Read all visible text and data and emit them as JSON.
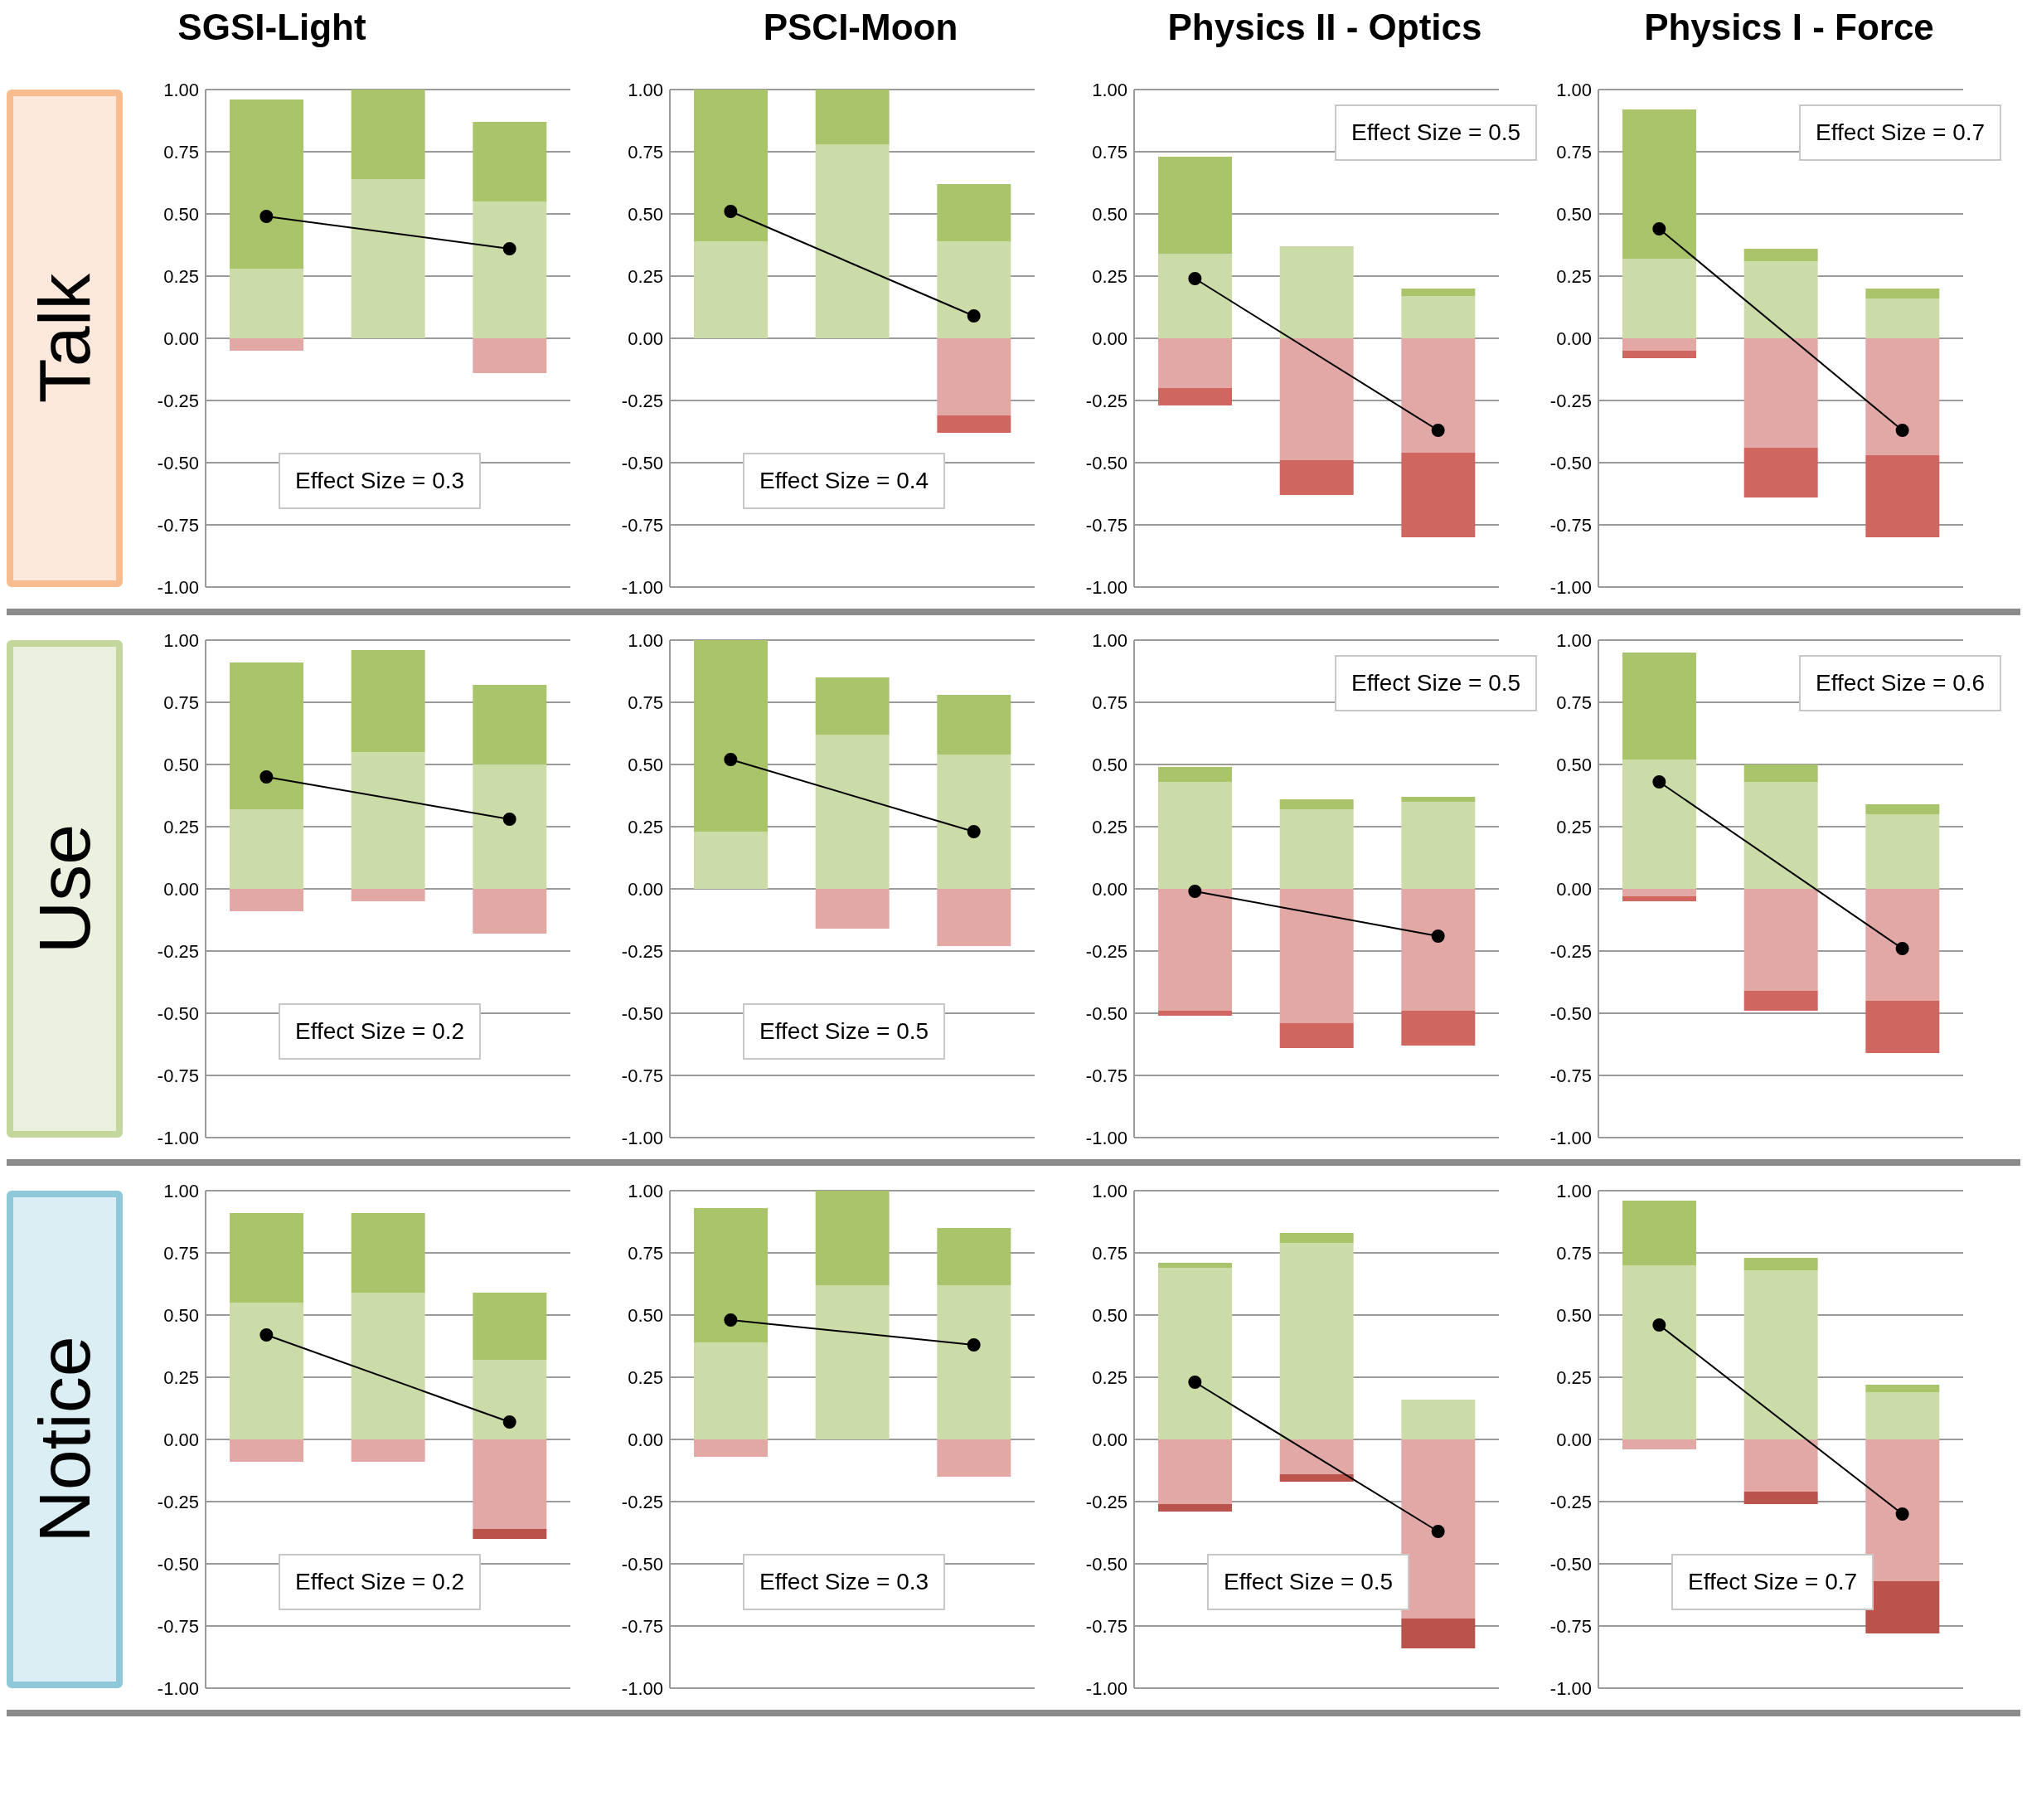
{
  "chart_data": [
    {
      "type": "bar",
      "stacked": true,
      "title": "SGSI-Light",
      "ylabel": "Talk",
      "categories": [
        null,
        null,
        null
      ],
      "ylim": [
        -1,
        1
      ],
      "yticks": [
        {
          "value": 1,
          "label": "1.00"
        },
        {
          "value": 0.75,
          "label": "0.75"
        },
        {
          "value": 0.5,
          "label": "0.50"
        },
        {
          "value": 0.25,
          "label": "0.25"
        },
        {
          "value": 0,
          "label": "0.00"
        },
        {
          "value": -0.25,
          "label": "-0.25"
        },
        {
          "value": -0.5,
          "label": "-0.50"
        },
        {
          "value": -0.75,
          "label": "-0.75"
        },
        {
          "value": -1,
          "label": "-1.00"
        }
      ],
      "grid": "y",
      "marker": "circle",
      "annotations": [
        "Effect Size = 0.3"
      ],
      "series": [
        {
          "color": "#cbdca8",
          "values": [
            0.28,
            0.64,
            0.55
          ]
        },
        {
          "color": "#a9c46a",
          "values": [
            0.68,
            0.36,
            0.32
          ]
        },
        {
          "color": "#e2a8a6",
          "values": [
            -0.05,
            0,
            -0.14
          ]
        },
        {
          "color": "#cf6660",
          "values": [
            0,
            0,
            0
          ]
        },
        {
          "type": "line",
          "color": "#000000",
          "values": [
            0.49,
            null,
            0.36
          ]
        }
      ]
    },
    {
      "type": "bar",
      "stacked": true,
      "title": "PSCI-Moon",
      "categories": [
        null,
        null,
        null
      ],
      "ylim": [
        -1,
        1
      ],
      "yticks": [
        {
          "value": 1,
          "label": "1.00"
        },
        {
          "value": 0.75,
          "label": "0.75"
        },
        {
          "value": 0.5,
          "label": "0.50"
        },
        {
          "value": 0.25,
          "label": "0.25"
        },
        {
          "value": 0,
          "label": "0.00"
        },
        {
          "value": -0.25,
          "label": "-0.25"
        },
        {
          "value": -0.5,
          "label": "-0.50"
        },
        {
          "value": -0.75,
          "label": "-0.75"
        },
        {
          "value": -1,
          "label": "-1.00"
        }
      ],
      "grid": "y",
      "marker": "circle",
      "annotations": [
        "Effect Size = 0.4"
      ],
      "series": [
        {
          "color": "#cbdca8",
          "values": [
            0.39,
            0.78,
            0.39
          ]
        },
        {
          "color": "#a9c46a",
          "values": [
            0.61,
            0.22,
            0.23
          ]
        },
        {
          "color": "#e2a8a6",
          "values": [
            0,
            0,
            -0.31
          ]
        },
        {
          "color": "#cf6660",
          "values": [
            0,
            0,
            -0.07
          ]
        },
        {
          "type": "line",
          "color": "#000000",
          "values": [
            0.51,
            null,
            0.09
          ]
        }
      ]
    },
    {
      "type": "bar",
      "stacked": true,
      "title": "Physics II - Optics",
      "categories": [
        null,
        null,
        null
      ],
      "ylim": [
        -1,
        1
      ],
      "yticks": [
        {
          "value": 1,
          "label": "1.00"
        },
        {
          "value": 0.75,
          "label": "0.75"
        },
        {
          "value": 0.5,
          "label": "0.50"
        },
        {
          "value": 0.25,
          "label": "0.25"
        },
        {
          "value": 0,
          "label": "0.00"
        },
        {
          "value": -0.25,
          "label": "-0.25"
        },
        {
          "value": -0.5,
          "label": "-0.50"
        },
        {
          "value": -0.75,
          "label": "-0.75"
        },
        {
          "value": -1,
          "label": "-1.00"
        }
      ],
      "grid": "y",
      "marker": "circle",
      "annotations": [
        "Effect Size = 0.5"
      ],
      "series": [
        {
          "color": "#cbdca8",
          "values": [
            0.34,
            0.37,
            0.17
          ]
        },
        {
          "color": "#a9c46a",
          "values": [
            0.39,
            0,
            0.03
          ]
        },
        {
          "color": "#e2a8a6",
          "values": [
            -0.2,
            -0.49,
            -0.46
          ]
        },
        {
          "color": "#cf6660",
          "values": [
            -0.07,
            -0.14,
            -0.34
          ]
        },
        {
          "type": "line",
          "color": "#000000",
          "values": [
            0.24,
            null,
            -0.37
          ]
        }
      ]
    },
    {
      "type": "bar",
      "stacked": true,
      "title": "Physics I - Force",
      "categories": [
        null,
        null,
        null
      ],
      "ylim": [
        -1,
        1
      ],
      "yticks": [
        {
          "value": 1,
          "label": "1.00"
        },
        {
          "value": 0.75,
          "label": "0.75"
        },
        {
          "value": 0.5,
          "label": "0.50"
        },
        {
          "value": 0.25,
          "label": "0.25"
        },
        {
          "value": 0,
          "label": "0.00"
        },
        {
          "value": -0.25,
          "label": "-0.25"
        },
        {
          "value": -0.5,
          "label": "-0.50"
        },
        {
          "value": -0.75,
          "label": "-0.75"
        },
        {
          "value": -1,
          "label": "-1.00"
        }
      ],
      "grid": "y",
      "marker": "circle",
      "annotations": [
        "Effect Size = 0.7"
      ],
      "series": [
        {
          "color": "#cbdca8",
          "values": [
            0.32,
            0.31,
            0.16
          ]
        },
        {
          "color": "#a9c46a",
          "values": [
            0.6,
            0.05,
            0.04
          ]
        },
        {
          "color": "#e2a8a6",
          "values": [
            -0.05,
            -0.44,
            -0.47
          ]
        },
        {
          "color": "#cf6660",
          "values": [
            -0.03,
            -0.2,
            -0.33
          ]
        },
        {
          "type": "line",
          "color": "#000000",
          "values": [
            0.44,
            null,
            -0.37
          ]
        }
      ]
    },
    {
      "type": "bar",
      "stacked": true,
      "ylabel": "Use",
      "categories": [
        null,
        null,
        null
      ],
      "ylim": [
        -1,
        1
      ],
      "yticks": [
        {
          "value": 1,
          "label": "1.00"
        },
        {
          "value": 0.75,
          "label": "0.75"
        },
        {
          "value": 0.5,
          "label": "0.50"
        },
        {
          "value": 0.25,
          "label": "0.25"
        },
        {
          "value": 0,
          "label": "0.00"
        },
        {
          "value": -0.25,
          "label": "-0.25"
        },
        {
          "value": -0.5,
          "label": "-0.50"
        },
        {
          "value": -0.75,
          "label": "-0.75"
        },
        {
          "value": -1,
          "label": "-1.00"
        }
      ],
      "grid": "y",
      "marker": "circle",
      "annotations": [
        "Effect Size = 0.2"
      ],
      "series": [
        {
          "color": "#cbdca8",
          "values": [
            0.32,
            0.55,
            0.5
          ]
        },
        {
          "color": "#a9c46a",
          "values": [
            0.59,
            0.41,
            0.32
          ]
        },
        {
          "color": "#e2a8a6",
          "values": [
            -0.09,
            -0.05,
            -0.18
          ]
        },
        {
          "color": "#cf6660",
          "values": [
            0,
            0,
            0
          ]
        },
        {
          "type": "line",
          "color": "#000000",
          "values": [
            0.45,
            null,
            0.28
          ]
        }
      ]
    },
    {
      "type": "bar",
      "stacked": true,
      "categories": [
        null,
        null,
        null
      ],
      "ylim": [
        -1,
        1
      ],
      "yticks": [
        {
          "value": 1,
          "label": "1.00"
        },
        {
          "value": 0.75,
          "label": "0.75"
        },
        {
          "value": 0.5,
          "label": "0.50"
        },
        {
          "value": 0.25,
          "label": "0.25"
        },
        {
          "value": 0,
          "label": "0.00"
        },
        {
          "value": -0.25,
          "label": "-0.25"
        },
        {
          "value": -0.5,
          "label": "-0.50"
        },
        {
          "value": -0.75,
          "label": "-0.75"
        },
        {
          "value": -1,
          "label": "-1.00"
        }
      ],
      "grid": "y",
      "marker": "circle",
      "annotations": [
        "Effect Size = 0.5"
      ],
      "series": [
        {
          "color": "#cbdca8",
          "values": [
            0.23,
            0.62,
            0.54
          ]
        },
        {
          "color": "#a9c46a",
          "values": [
            0.77,
            0.23,
            0.24
          ]
        },
        {
          "color": "#e2a8a6",
          "values": [
            0,
            -0.16,
            -0.23
          ]
        },
        {
          "color": "#cf6660",
          "values": [
            0,
            0,
            0
          ]
        },
        {
          "type": "line",
          "color": "#000000",
          "values": [
            0.52,
            null,
            0.23
          ]
        }
      ]
    },
    {
      "type": "bar",
      "stacked": true,
      "categories": [
        null,
        null,
        null
      ],
      "ylim": [
        -1,
        1
      ],
      "yticks": [
        {
          "value": 1,
          "label": "1.00"
        },
        {
          "value": 0.75,
          "label": "0.75"
        },
        {
          "value": 0.5,
          "label": "0.50"
        },
        {
          "value": 0.25,
          "label": "0.25"
        },
        {
          "value": 0,
          "label": "0.00"
        },
        {
          "value": -0.25,
          "label": "-0.25"
        },
        {
          "value": -0.5,
          "label": "-0.50"
        },
        {
          "value": -0.75,
          "label": "-0.75"
        },
        {
          "value": -1,
          "label": "-1.00"
        }
      ],
      "grid": "y",
      "marker": "circle",
      "annotations": [
        "Effect Size = 0.5"
      ],
      "series": [
        {
          "color": "#cbdca8",
          "values": [
            0.43,
            0.32,
            0.35
          ]
        },
        {
          "color": "#a9c46a",
          "values": [
            0.06,
            0.04,
            0.02
          ]
        },
        {
          "color": "#e2a8a6",
          "values": [
            -0.49,
            -0.54,
            -0.49
          ]
        },
        {
          "color": "#cf6660",
          "values": [
            -0.02,
            -0.1,
            -0.14
          ]
        },
        {
          "type": "line",
          "color": "#000000",
          "values": [
            -0.01,
            null,
            -0.19
          ]
        }
      ]
    },
    {
      "type": "bar",
      "stacked": true,
      "categories": [
        null,
        null,
        null
      ],
      "ylim": [
        -1,
        1
      ],
      "yticks": [
        {
          "value": 1,
          "label": "1.00"
        },
        {
          "value": 0.75,
          "label": "0.75"
        },
        {
          "value": 0.5,
          "label": "0.50"
        },
        {
          "value": 0.25,
          "label": "0.25"
        },
        {
          "value": 0,
          "label": "0.00"
        },
        {
          "value": -0.25,
          "label": "-0.25"
        },
        {
          "value": -0.5,
          "label": "-0.50"
        },
        {
          "value": -0.75,
          "label": "-0.75"
        },
        {
          "value": -1,
          "label": "-1.00"
        }
      ],
      "grid": "y",
      "marker": "circle",
      "annotations": [
        "Effect Size = 0.6"
      ],
      "series": [
        {
          "color": "#cbdca8",
          "values": [
            0.52,
            0.43,
            0.3
          ]
        },
        {
          "color": "#a9c46a",
          "values": [
            0.43,
            0.07,
            0.04
          ]
        },
        {
          "color": "#e2a8a6",
          "values": [
            -0.03,
            -0.41,
            -0.45
          ]
        },
        {
          "color": "#cf6660",
          "values": [
            -0.02,
            -0.08,
            -0.21
          ]
        },
        {
          "type": "line",
          "color": "#000000",
          "values": [
            0.43,
            null,
            -0.24
          ]
        }
      ]
    },
    {
      "type": "bar",
      "stacked": true,
      "ylabel": "Notice",
      "categories": [
        null,
        null,
        null
      ],
      "ylim": [
        -1,
        1
      ],
      "yticks": [
        {
          "value": 1,
          "label": "1.00"
        },
        {
          "value": 0.75,
          "label": "0.75"
        },
        {
          "value": 0.5,
          "label": "0.50"
        },
        {
          "value": 0.25,
          "label": "0.25"
        },
        {
          "value": 0,
          "label": "0.00"
        },
        {
          "value": -0.25,
          "label": "-0.25"
        },
        {
          "value": -0.5,
          "label": "-0.50"
        },
        {
          "value": -0.75,
          "label": "-0.75"
        },
        {
          "value": -1,
          "label": "-1.00"
        }
      ],
      "grid": "y",
      "marker": "circle",
      "annotations": [
        "Effect Size = 0.2"
      ],
      "series": [
        {
          "color": "#cbdca8",
          "values": [
            0.55,
            0.59,
            0.32
          ]
        },
        {
          "color": "#a9c46a",
          "values": [
            0.36,
            0.32,
            0.27
          ]
        },
        {
          "color": "#e2a8a6",
          "values": [
            -0.09,
            -0.09,
            -0.36
          ]
        },
        {
          "color": "#b9534c",
          "values": [
            0,
            0,
            -0.04
          ]
        },
        {
          "type": "line",
          "color": "#000000",
          "values": [
            0.42,
            null,
            0.07
          ]
        }
      ]
    },
    {
      "type": "bar",
      "stacked": true,
      "categories": [
        null,
        null,
        null
      ],
      "ylim": [
        -1,
        1
      ],
      "yticks": [
        {
          "value": 1,
          "label": "1.00"
        },
        {
          "value": 0.75,
          "label": "0.75"
        },
        {
          "value": 0.5,
          "label": "0.50"
        },
        {
          "value": 0.25,
          "label": "0.25"
        },
        {
          "value": 0,
          "label": "0.00"
        },
        {
          "value": -0.25,
          "label": "-0.25"
        },
        {
          "value": -0.5,
          "label": "-0.50"
        },
        {
          "value": -0.75,
          "label": "-0.75"
        },
        {
          "value": -1,
          "label": "-1.00"
        }
      ],
      "grid": "y",
      "marker": "circle",
      "annotations": [
        "Effect Size = 0.3"
      ],
      "series": [
        {
          "color": "#cbdca8",
          "values": [
            0.39,
            0.62,
            0.62
          ]
        },
        {
          "color": "#a9c46a",
          "values": [
            0.54,
            0.38,
            0.23
          ]
        },
        {
          "color": "#e2a8a6",
          "values": [
            -0.07,
            0,
            -0.15
          ]
        },
        {
          "color": "#b9534c",
          "values": [
            0,
            0,
            0
          ]
        },
        {
          "type": "line",
          "color": "#000000",
          "values": [
            0.48,
            null,
            0.38
          ]
        }
      ]
    },
    {
      "type": "bar",
      "stacked": true,
      "categories": [
        null,
        null,
        null
      ],
      "ylim": [
        -1,
        1
      ],
      "yticks": [
        {
          "value": 1,
          "label": "1.00"
        },
        {
          "value": 0.75,
          "label": "0.75"
        },
        {
          "value": 0.5,
          "label": "0.50"
        },
        {
          "value": 0.25,
          "label": "0.25"
        },
        {
          "value": 0,
          "label": "0.00"
        },
        {
          "value": -0.25,
          "label": "-0.25"
        },
        {
          "value": -0.5,
          "label": "-0.50"
        },
        {
          "value": -0.75,
          "label": "-0.75"
        },
        {
          "value": -1,
          "label": "-1.00"
        }
      ],
      "grid": "y",
      "marker": "circle",
      "annotations": [
        "Effect Size = 0.5"
      ],
      "series": [
        {
          "color": "#cbdca8",
          "values": [
            0.69,
            0.79,
            0.16
          ]
        },
        {
          "color": "#a9c46a",
          "values": [
            0.02,
            0.04,
            0
          ]
        },
        {
          "color": "#e2a8a6",
          "values": [
            -0.26,
            -0.14,
            -0.72
          ]
        },
        {
          "color": "#b9534c",
          "values": [
            -0.03,
            -0.03,
            -0.12
          ]
        },
        {
          "type": "line",
          "color": "#000000",
          "values": [
            0.23,
            null,
            -0.37
          ]
        }
      ]
    },
    {
      "type": "bar",
      "stacked": true,
      "categories": [
        null,
        null,
        null
      ],
      "ylim": [
        -1,
        1
      ],
      "yticks": [
        {
          "value": 1,
          "label": "1.00"
        },
        {
          "value": 0.75,
          "label": "0.75"
        },
        {
          "value": 0.5,
          "label": "0.50"
        },
        {
          "value": 0.25,
          "label": "0.25"
        },
        {
          "value": 0,
          "label": "0.00"
        },
        {
          "value": -0.25,
          "label": "-0.25"
        },
        {
          "value": -0.5,
          "label": "-0.50"
        },
        {
          "value": -0.75,
          "label": "-0.75"
        },
        {
          "value": -1,
          "label": "-1.00"
        }
      ],
      "grid": "y",
      "marker": "circle",
      "annotations": [
        "Effect Size = 0.7"
      ],
      "series": [
        {
          "color": "#cbdca8",
          "values": [
            0.7,
            0.68,
            0.19
          ]
        },
        {
          "color": "#a9c46a",
          "values": [
            0.26,
            0.05,
            0.03
          ]
        },
        {
          "color": "#e2a8a6",
          "values": [
            -0.04,
            -0.21,
            -0.57
          ]
        },
        {
          "color": "#b9534c",
          "values": [
            0,
            -0.05,
            -0.21
          ]
        },
        {
          "type": "line",
          "color": "#000000",
          "values": [
            0.46,
            null,
            -0.3
          ]
        }
      ]
    }
  ]
}
